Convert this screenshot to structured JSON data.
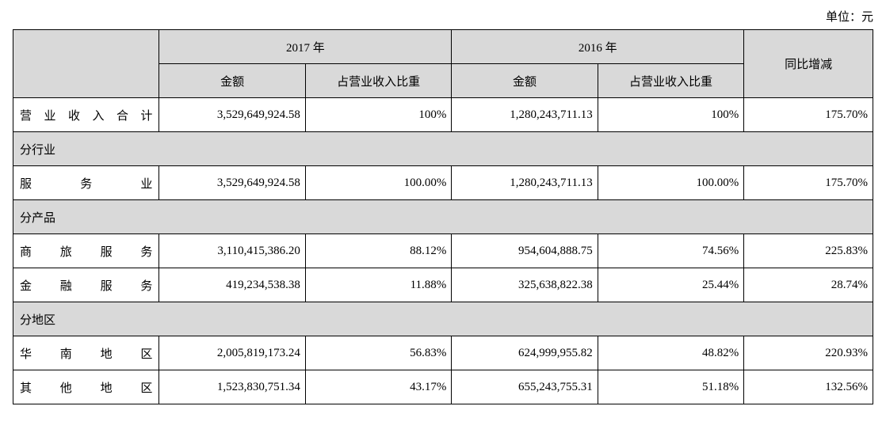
{
  "unit_label": "单位：元",
  "header": {
    "year1": "2017 年",
    "year2": "2016 年",
    "yoy": "同比增减",
    "amount": "金额",
    "share": "占营业收入比重"
  },
  "total_row": {
    "label": "营业收入合计",
    "y2017_amount": "3,529,649,924.58",
    "y2017_share": "100%",
    "y2016_amount": "1,280,243,711.13",
    "y2016_share": "100%",
    "yoy": "175.70%"
  },
  "sections": {
    "industry": {
      "label": "分行业"
    },
    "product": {
      "label": "分产品"
    },
    "region": {
      "label": "分地区"
    }
  },
  "rows": {
    "service": {
      "label": "服务业",
      "y2017_amount": "3,529,649,924.58",
      "y2017_share": "100.00%",
      "y2016_amount": "1,280,243,711.13",
      "y2016_share": "100.00%",
      "yoy": "175.70%"
    },
    "travel": {
      "label": "商旅服务",
      "y2017_amount": "3,110,415,386.20",
      "y2017_share": "88.12%",
      "y2016_amount": "954,604,888.75",
      "y2016_share": "74.56%",
      "yoy": "225.83%"
    },
    "finance": {
      "label": "金融服务",
      "y2017_amount": "419,234,538.38",
      "y2017_share": "11.88%",
      "y2016_amount": "325,638,822.38",
      "y2016_share": "25.44%",
      "yoy": "28.74%"
    },
    "south": {
      "label": "华南地区",
      "y2017_amount": "2,005,819,173.24",
      "y2017_share": "56.83%",
      "y2016_amount": "624,999,955.82",
      "y2016_share": "48.82%",
      "yoy": "220.93%"
    },
    "other": {
      "label": "其他地区",
      "y2017_amount": "1,523,830,751.34",
      "y2017_share": "43.17%",
      "y2016_amount": "655,243,755.31",
      "y2016_share": "51.18%",
      "yoy": "132.56%"
    }
  }
}
